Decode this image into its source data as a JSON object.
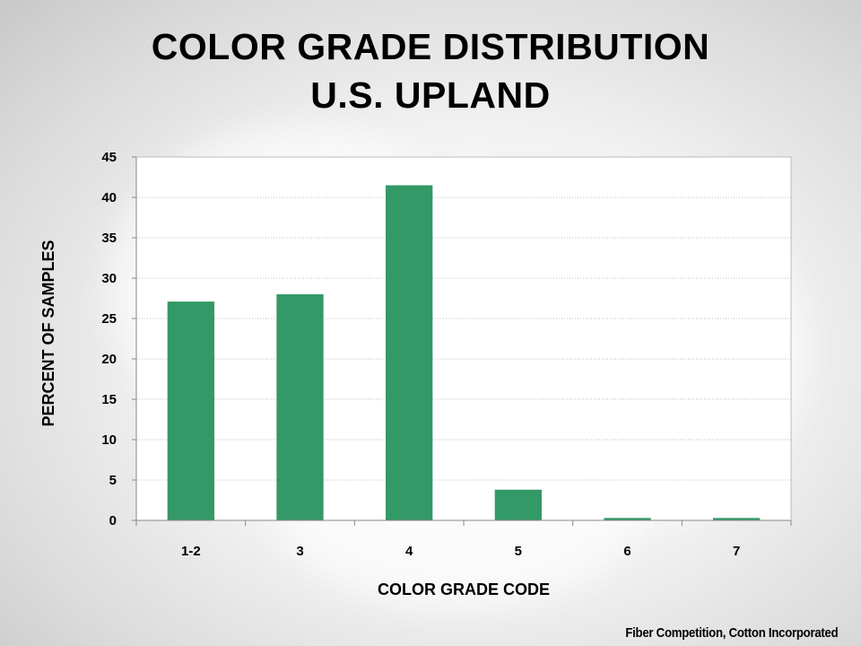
{
  "slide": {
    "title_line1": "COLOR GRADE DISTRIBUTION",
    "title_line2": "U.S. UPLAND",
    "credit": "Fiber Competition, Cotton Incorporated"
  },
  "chart_data": {
    "type": "bar",
    "title": "",
    "categories": [
      "1-2",
      "3",
      "4",
      "5",
      "6",
      "7"
    ],
    "values": [
      27.1,
      28.0,
      41.5,
      3.8,
      0.3,
      0.3
    ],
    "xlabel": "COLOR GRADE CODE",
    "ylabel": "PERCENT OF SAMPLES",
    "ylim": [
      0,
      45
    ],
    "yticks": [
      0,
      5,
      10,
      15,
      20,
      25,
      30,
      35,
      40,
      45
    ],
    "grid": true,
    "legend": "none",
    "bar_color": "#339966"
  }
}
